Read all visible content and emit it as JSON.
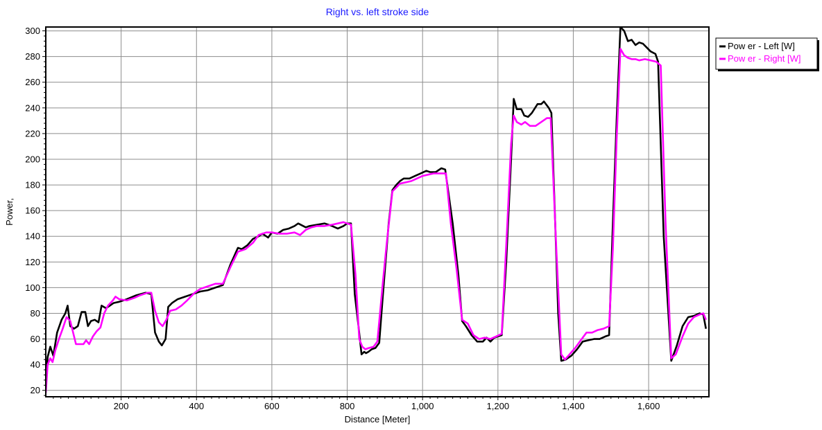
{
  "chart_data": {
    "type": "line",
    "title": "Right vs. left stroke side",
    "xlabel": "Distance [Meter]",
    "ylabel": "Power,",
    "xlim": [
      0,
      1760
    ],
    "ylim": [
      15,
      303
    ],
    "x_ticks": [
      200,
      400,
      600,
      800,
      1000,
      1200,
      1400,
      1600
    ],
    "x_tick_labels": [
      "200",
      "400",
      "600",
      "800",
      "1,000",
      "1,200",
      "1,400",
      "1,600"
    ],
    "y_ticks": [
      20,
      40,
      60,
      80,
      100,
      120,
      140,
      160,
      180,
      200,
      220,
      240,
      260,
      280,
      300
    ],
    "y_tick_labels": [
      "20",
      "40",
      "60",
      "80",
      "100",
      "120",
      "140",
      "160",
      "180",
      "200",
      "220",
      "240",
      "260",
      "280",
      "300"
    ],
    "grid": true,
    "legend_position": "right-top",
    "series": [
      {
        "name": "Pow er - Left [W]",
        "color": "#000000",
        "points": [
          [
            0,
            24
          ],
          [
            5,
            46
          ],
          [
            12,
            54
          ],
          [
            20,
            47
          ],
          [
            30,
            65
          ],
          [
            42,
            75
          ],
          [
            52,
            80
          ],
          [
            58,
            86
          ],
          [
            65,
            70
          ],
          [
            75,
            68
          ],
          [
            85,
            70
          ],
          [
            95,
            81
          ],
          [
            105,
            81
          ],
          [
            112,
            70
          ],
          [
            120,
            74
          ],
          [
            130,
            75
          ],
          [
            140,
            73
          ],
          [
            148,
            86
          ],
          [
            160,
            84
          ],
          [
            170,
            86
          ],
          [
            180,
            88
          ],
          [
            195,
            89
          ],
          [
            215,
            91
          ],
          [
            240,
            94
          ],
          [
            265,
            96
          ],
          [
            280,
            95
          ],
          [
            290,
            65
          ],
          [
            300,
            58
          ],
          [
            308,
            55
          ],
          [
            318,
            60
          ],
          [
            325,
            85
          ],
          [
            335,
            88
          ],
          [
            350,
            91
          ],
          [
            370,
            93
          ],
          [
            390,
            95
          ],
          [
            410,
            97
          ],
          [
            430,
            98
          ],
          [
            450,
            100
          ],
          [
            470,
            102
          ],
          [
            490,
            118
          ],
          [
            510,
            131
          ],
          [
            520,
            130
          ],
          [
            535,
            133
          ],
          [
            550,
            138
          ],
          [
            565,
            140
          ],
          [
            575,
            142
          ],
          [
            590,
            139
          ],
          [
            600,
            143
          ],
          [
            615,
            142
          ],
          [
            630,
            145
          ],
          [
            645,
            146
          ],
          [
            660,
            148
          ],
          [
            670,
            150
          ],
          [
            690,
            147
          ],
          [
            700,
            148
          ],
          [
            720,
            149
          ],
          [
            740,
            150
          ],
          [
            760,
            148
          ],
          [
            775,
            146
          ],
          [
            790,
            148
          ],
          [
            800,
            150
          ],
          [
            810,
            150
          ],
          [
            820,
            95
          ],
          [
            830,
            70
          ],
          [
            838,
            48
          ],
          [
            845,
            50
          ],
          [
            850,
            49
          ],
          [
            856,
            50
          ],
          [
            865,
            52
          ],
          [
            875,
            53
          ],
          [
            885,
            57
          ],
          [
            895,
            95
          ],
          [
            910,
            150
          ],
          [
            920,
            176
          ],
          [
            930,
            180
          ],
          [
            940,
            183
          ],
          [
            950,
            185
          ],
          [
            965,
            185
          ],
          [
            980,
            187
          ],
          [
            995,
            189
          ],
          [
            1010,
            191
          ],
          [
            1020,
            190
          ],
          [
            1035,
            190
          ],
          [
            1050,
            193
          ],
          [
            1060,
            192
          ],
          [
            1080,
            150
          ],
          [
            1095,
            110
          ],
          [
            1105,
            74
          ],
          [
            1115,
            70
          ],
          [
            1130,
            63
          ],
          [
            1145,
            58
          ],
          [
            1160,
            58
          ],
          [
            1170,
            61
          ],
          [
            1180,
            58
          ],
          [
            1190,
            61
          ],
          [
            1200,
            62
          ],
          [
            1210,
            63
          ],
          [
            1222,
            120
          ],
          [
            1235,
            200
          ],
          [
            1242,
            247
          ],
          [
            1250,
            239
          ],
          [
            1262,
            239
          ],
          [
            1270,
            234
          ],
          [
            1280,
            233
          ],
          [
            1290,
            236
          ],
          [
            1305,
            243
          ],
          [
            1315,
            243
          ],
          [
            1322,
            245
          ],
          [
            1335,
            240
          ],
          [
            1342,
            236
          ],
          [
            1352,
            150
          ],
          [
            1360,
            80
          ],
          [
            1368,
            43
          ],
          [
            1380,
            44
          ],
          [
            1395,
            47
          ],
          [
            1410,
            52
          ],
          [
            1425,
            58
          ],
          [
            1440,
            59
          ],
          [
            1455,
            60
          ],
          [
            1470,
            60
          ],
          [
            1485,
            62
          ],
          [
            1495,
            63
          ],
          [
            1505,
            150
          ],
          [
            1515,
            230
          ],
          [
            1525,
            303
          ],
          [
            1535,
            300
          ],
          [
            1545,
            292
          ],
          [
            1555,
            293
          ],
          [
            1565,
            289
          ],
          [
            1575,
            291
          ],
          [
            1585,
            290
          ],
          [
            1595,
            287
          ],
          [
            1605,
            284
          ],
          [
            1618,
            282
          ],
          [
            1625,
            276
          ],
          [
            1640,
            140
          ],
          [
            1660,
            43
          ],
          [
            1675,
            55
          ],
          [
            1690,
            70
          ],
          [
            1705,
            77
          ],
          [
            1720,
            78
          ],
          [
            1735,
            80
          ],
          [
            1745,
            79
          ],
          [
            1752,
            68
          ]
        ]
      },
      {
        "name": "Pow er - Right [W]",
        "color": "#ff00ff",
        "points": [
          [
            0,
            18
          ],
          [
            5,
            40
          ],
          [
            12,
            45
          ],
          [
            18,
            42
          ],
          [
            25,
            51
          ],
          [
            35,
            60
          ],
          [
            45,
            68
          ],
          [
            55,
            77
          ],
          [
            65,
            74
          ],
          [
            80,
            56
          ],
          [
            90,
            56
          ],
          [
            100,
            56
          ],
          [
            107,
            59
          ],
          [
            115,
            56
          ],
          [
            125,
            62
          ],
          [
            135,
            66
          ],
          [
            145,
            69
          ],
          [
            155,
            80
          ],
          [
            165,
            86
          ],
          [
            178,
            90
          ],
          [
            185,
            93
          ],
          [
            195,
            91
          ],
          [
            215,
            90
          ],
          [
            235,
            92
          ],
          [
            250,
            94
          ],
          [
            270,
            96
          ],
          [
            280,
            96
          ],
          [
            290,
            82
          ],
          [
            300,
            73
          ],
          [
            310,
            70
          ],
          [
            320,
            75
          ],
          [
            330,
            82
          ],
          [
            345,
            83
          ],
          [
            360,
            86
          ],
          [
            375,
            90
          ],
          [
            395,
            96
          ],
          [
            410,
            99
          ],
          [
            430,
            101
          ],
          [
            450,
            103
          ],
          [
            470,
            103
          ],
          [
            490,
            116
          ],
          [
            510,
            128
          ],
          [
            530,
            130
          ],
          [
            550,
            135
          ],
          [
            565,
            141
          ],
          [
            585,
            143
          ],
          [
            600,
            143
          ],
          [
            620,
            142
          ],
          [
            640,
            142
          ],
          [
            660,
            143
          ],
          [
            675,
            141
          ],
          [
            690,
            145
          ],
          [
            705,
            147
          ],
          [
            720,
            148
          ],
          [
            740,
            148
          ],
          [
            760,
            149
          ],
          [
            775,
            150
          ],
          [
            790,
            151
          ],
          [
            800,
            150
          ],
          [
            810,
            149
          ],
          [
            822,
            110
          ],
          [
            832,
            60
          ],
          [
            840,
            54
          ],
          [
            848,
            52
          ],
          [
            858,
            53
          ],
          [
            870,
            54
          ],
          [
            880,
            58
          ],
          [
            895,
            105
          ],
          [
            905,
            135
          ],
          [
            920,
            175
          ],
          [
            930,
            178
          ],
          [
            940,
            181
          ],
          [
            955,
            182
          ],
          [
            970,
            183
          ],
          [
            985,
            185
          ],
          [
            1000,
            187
          ],
          [
            1015,
            188
          ],
          [
            1030,
            189
          ],
          [
            1050,
            189
          ],
          [
            1062,
            189
          ],
          [
            1075,
            150
          ],
          [
            1090,
            115
          ],
          [
            1105,
            75
          ],
          [
            1120,
            72
          ],
          [
            1135,
            63
          ],
          [
            1150,
            60
          ],
          [
            1165,
            61
          ],
          [
            1180,
            60
          ],
          [
            1195,
            62
          ],
          [
            1210,
            64
          ],
          [
            1225,
            150
          ],
          [
            1235,
            212
          ],
          [
            1242,
            234
          ],
          [
            1250,
            229
          ],
          [
            1262,
            227
          ],
          [
            1272,
            229
          ],
          [
            1285,
            226
          ],
          [
            1300,
            226
          ],
          [
            1315,
            229
          ],
          [
            1330,
            232
          ],
          [
            1340,
            232
          ],
          [
            1355,
            130
          ],
          [
            1368,
            48
          ],
          [
            1378,
            44
          ],
          [
            1390,
            48
          ],
          [
            1405,
            53
          ],
          [
            1420,
            59
          ],
          [
            1435,
            65
          ],
          [
            1450,
            65
          ],
          [
            1465,
            67
          ],
          [
            1480,
            68
          ],
          [
            1495,
            70
          ],
          [
            1505,
            130
          ],
          [
            1515,
            215
          ],
          [
            1525,
            286
          ],
          [
            1535,
            281
          ],
          [
            1545,
            279
          ],
          [
            1555,
            278
          ],
          [
            1565,
            278
          ],
          [
            1575,
            277
          ],
          [
            1590,
            278
          ],
          [
            1605,
            277
          ],
          [
            1620,
            276
          ],
          [
            1632,
            273
          ],
          [
            1645,
            150
          ],
          [
            1660,
            45
          ],
          [
            1672,
            48
          ],
          [
            1690,
            62
          ],
          [
            1705,
            72
          ],
          [
            1720,
            77
          ],
          [
            1735,
            79
          ],
          [
            1745,
            80
          ],
          [
            1752,
            75
          ]
        ]
      }
    ]
  }
}
